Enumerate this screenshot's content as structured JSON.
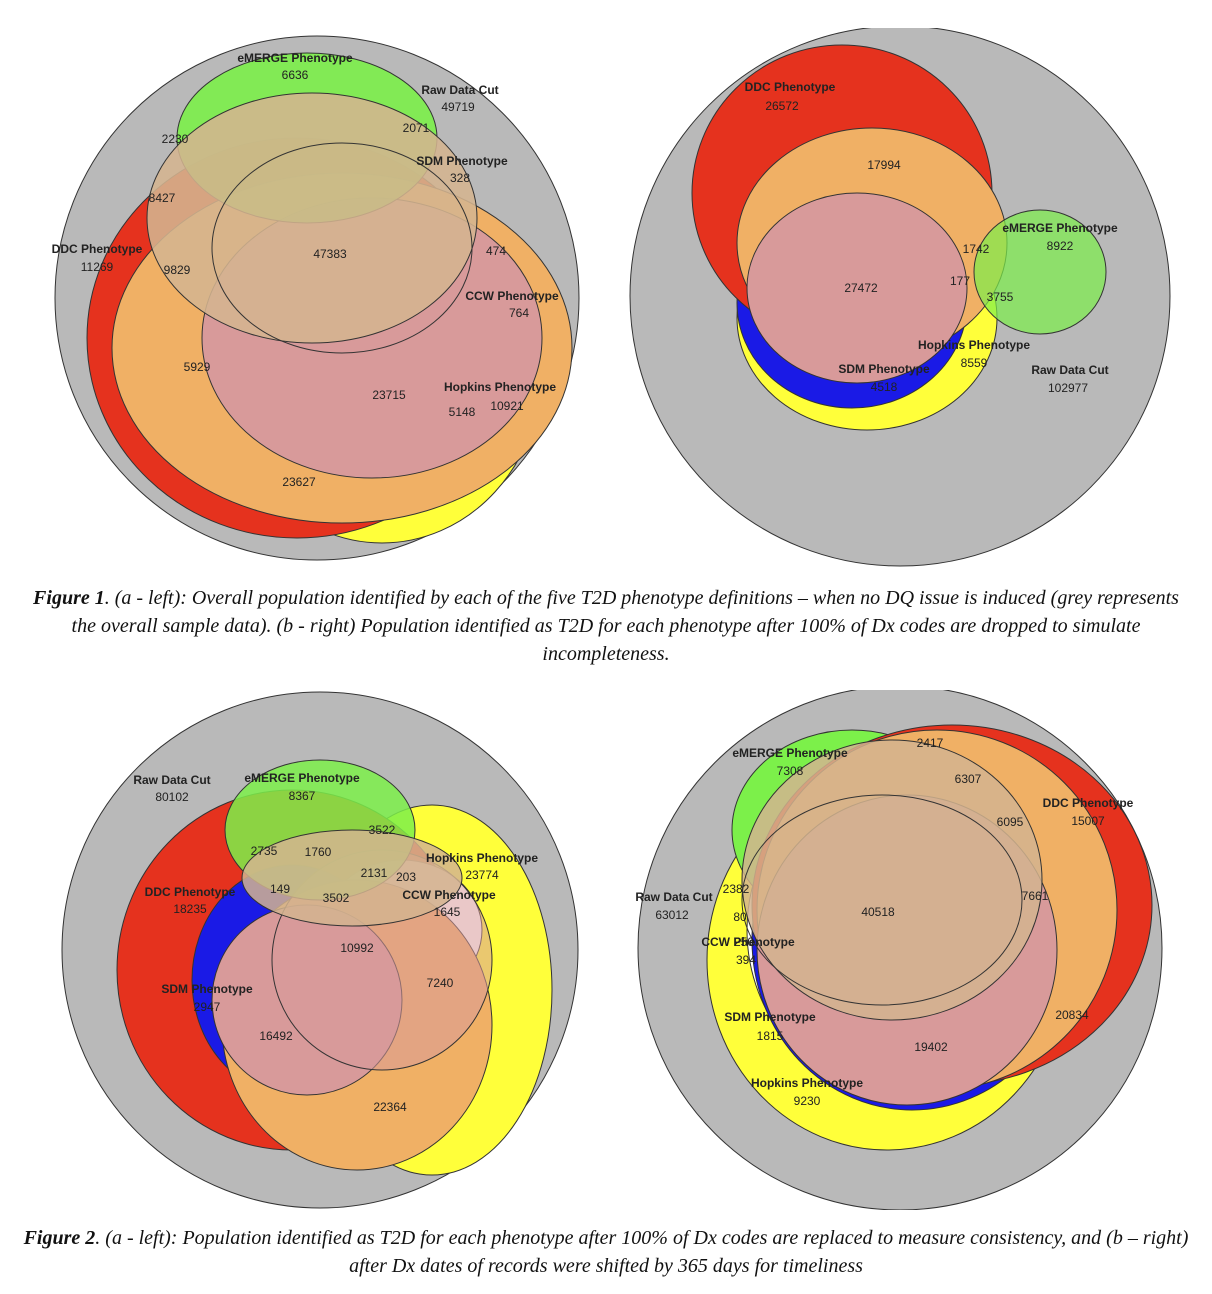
{
  "colors": {
    "grey": "#b9b9b9",
    "red": "#e5321e",
    "yellow": "#ffff3a",
    "green": "#7cf04a",
    "blue": "#1a1ae6",
    "orange": "#f0b065",
    "pink": "#d89a9a",
    "tan": "#d4b48f"
  },
  "figure1": {
    "caption_bold": "Figure 1",
    "caption_text": ". (a - left): Overall population identified by each of the five T2D phenotype definitions – when no DQ issue is induced (grey represents the overall sample data). (b - right) Population identified as T2D for each phenotype after 100% of Dx codes are dropped to simulate incompleteness.",
    "left": {
      "labels": {
        "emerge_name": "eMERGE Phenotype",
        "emerge_val": "6636",
        "raw_name": "Raw Data Cut",
        "raw_val": "49719",
        "sdm_name": "SDM Phenotype",
        "sdm_val": "328",
        "ddc_name": "DDC Phenotype",
        "ddc_val": "11269",
        "ccw_name": "CCW Phenotype",
        "ccw_val": "764",
        "hopkins_name": "Hopkins Phenotype",
        "hopkins_val": "10921"
      },
      "regions": [
        "2230",
        "2071",
        "8427",
        "9829",
        "47383",
        "474",
        "5929",
        "23715",
        "5148",
        "23627"
      ]
    },
    "right": {
      "labels": {
        "ddc_name": "DDC Phenotype",
        "ddc_val": "26572",
        "emerge_name": "eMERGE Phenotype",
        "emerge_val": "8922",
        "hopkins_name": "Hopkins Phenotype",
        "hopkins_val": "8559",
        "sdm_name": "SDM Phenotype",
        "sdm_val": "4518",
        "raw_name": "Raw Data Cut",
        "raw_val": "102977"
      },
      "regions": [
        "17994",
        "1742",
        "27472",
        "177",
        "3755"
      ]
    }
  },
  "figure2": {
    "caption_bold": "Figure 2",
    "caption_text": ". (a - left): Population identified as T2D for each phenotype after 100% of Dx codes are replaced to measure consistency, and (b – right) after Dx dates of records were shifted by 365 days for timeliness",
    "left": {
      "labels": {
        "raw_name": "Raw Data Cut",
        "raw_val": "80102",
        "emerge_name": "eMERGE Phenotype",
        "emerge_val": "8367",
        "hopkins_name": "Hopkins Phenotype",
        "hopkins_val": "23774",
        "ddc_name": "DDC Phenotype",
        "ddc_val": "18235",
        "ccw_name": "CCW Phenotype",
        "ccw_val": "1645",
        "sdm_name": "SDM Phenotype",
        "sdm_val": "2947"
      },
      "regions": [
        "3522",
        "2735",
        "1760",
        "2131",
        "203",
        "149",
        "3502",
        "10992",
        "7240",
        "16492",
        "22364"
      ]
    },
    "right": {
      "labels": {
        "emerge_name": "eMERGE Phenotype",
        "emerge_val": "7308",
        "ddc_name": "DDC Phenotype",
        "ddc_val": "15007",
        "raw_name": "Raw Data Cut",
        "raw_val": "63012",
        "ccw_name": "CCW Phenotype",
        "ccw_val": "250",
        "sdm_name": "SDM Phenotype",
        "sdm_val": "1815",
        "hopkins_name": "Hopkins Phenotype",
        "hopkins_val": "9230"
      },
      "regions": [
        "2417",
        "6307",
        "6095",
        "2382",
        "80",
        "40518",
        "7661",
        "394",
        "20834",
        "19402"
      ]
    }
  }
}
